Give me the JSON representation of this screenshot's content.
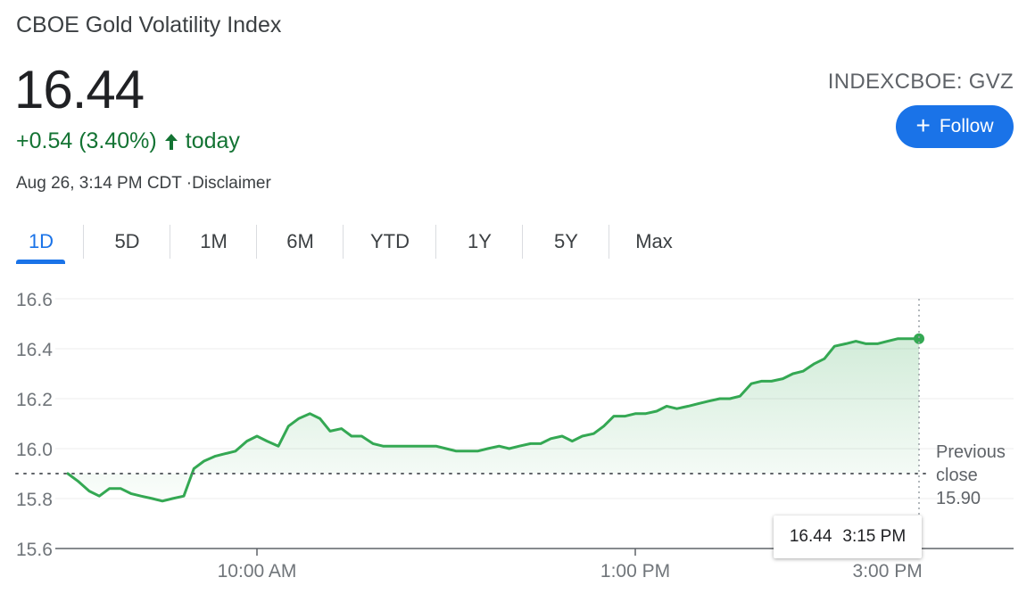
{
  "header": {
    "title": "CBOE Gold Volatility Index",
    "price": "16.44",
    "change": "+0.54 (3.40%)",
    "change_suffix": "today",
    "timestamp": "Aug 26, 3:14 PM CDT ·",
    "disclaimer": "Disclaimer",
    "ticker": "INDEXCBOE: GVZ",
    "follow_label": "Follow"
  },
  "tabs": [
    "1D",
    "5D",
    "1M",
    "6M",
    "YTD",
    "1Y",
    "5Y",
    "Max"
  ],
  "active_tab": "1D",
  "tooltip": {
    "value": "16.44",
    "time": "3:15 PM"
  },
  "previous_close": {
    "label_line1": "Previous",
    "label_line2": "close",
    "value": "15.90"
  },
  "colors": {
    "up_green": "#34a853",
    "change_green": "#137333",
    "accent_blue": "#1a73e8"
  },
  "chart_data": {
    "type": "area",
    "title": "",
    "xlabel": "",
    "ylabel": "",
    "ylim": [
      15.6,
      16.6
    ],
    "yticks": [
      15.6,
      15.8,
      16.0,
      16.2,
      16.4,
      16.6
    ],
    "ytick_labels": [
      "15.6",
      "15.8",
      "16.0",
      "16.2",
      "16.4",
      "16.6"
    ],
    "xticks": [
      {
        "hour": 10.0,
        "label": "10:00 AM"
      },
      {
        "hour": 13.0,
        "label": "1:00 PM"
      },
      {
        "hour": 15.0,
        "label": "3:00 PM"
      }
    ],
    "baseline": 15.9,
    "grid": true,
    "series": [
      {
        "x": [
          8.5,
          8.58,
          8.67,
          8.75,
          8.83,
          8.92,
          9.0,
          9.08,
          9.17,
          9.25,
          9.33,
          9.42,
          9.5,
          9.58,
          9.67,
          9.75,
          9.83,
          9.92,
          10.0,
          10.08,
          10.17,
          10.25,
          10.33,
          10.42,
          10.5,
          10.58,
          10.67,
          10.75,
          10.83,
          10.92,
          11.0,
          11.08,
          11.17,
          11.25,
          11.33,
          11.42,
          11.5,
          11.58,
          11.67,
          11.75,
          11.83,
          11.92,
          12.0,
          12.08,
          12.17,
          12.25,
          12.33,
          12.42,
          12.5,
          12.58,
          12.67,
          12.75,
          12.83,
          12.92,
          13.0,
          13.08,
          13.17,
          13.25,
          13.33,
          13.42,
          13.5,
          13.58,
          13.67,
          13.75,
          13.83,
          13.92,
          14.0,
          14.08,
          14.17,
          14.25,
          14.33,
          14.42,
          14.5,
          14.58,
          14.67,
          14.75,
          14.83,
          14.92,
          15.0,
          15.08,
          15.17,
          15.25
        ],
        "y": [
          15.9,
          15.87,
          15.83,
          15.81,
          15.84,
          15.84,
          15.82,
          15.81,
          15.8,
          15.79,
          15.8,
          15.81,
          15.92,
          15.95,
          15.97,
          15.98,
          15.99,
          16.03,
          16.05,
          16.03,
          16.01,
          16.09,
          16.12,
          16.14,
          16.12,
          16.07,
          16.08,
          16.05,
          16.05,
          16.02,
          16.01,
          16.01,
          16.01,
          16.01,
          16.01,
          16.01,
          16.0,
          15.99,
          15.99,
          15.99,
          16.0,
          16.01,
          16.0,
          16.01,
          16.02,
          16.02,
          16.04,
          16.05,
          16.03,
          16.05,
          16.06,
          16.09,
          16.13,
          16.13,
          16.14,
          16.14,
          16.15,
          16.17,
          16.16,
          16.17,
          16.18,
          16.19,
          16.2,
          16.2,
          16.21,
          16.26,
          16.27,
          16.27,
          16.28,
          16.3,
          16.31,
          16.34,
          16.36,
          16.41,
          16.42,
          16.43,
          16.42,
          16.42,
          16.43,
          16.44,
          16.44,
          16.44
        ]
      }
    ]
  }
}
